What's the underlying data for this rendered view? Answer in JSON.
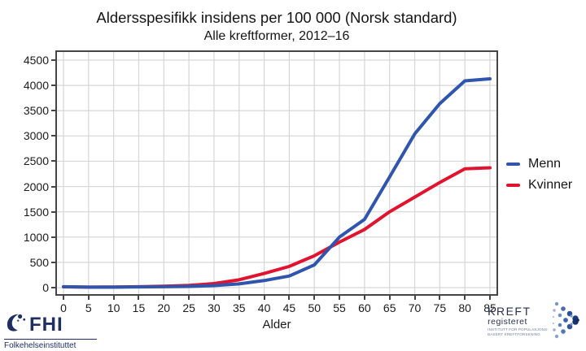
{
  "title": "Aldersspesifikk insidens per 100 000 (Norsk standard)",
  "subtitle": "Alle kreftformer, 2012–16",
  "chart_data": {
    "type": "line",
    "x": [
      0,
      5,
      10,
      15,
      20,
      25,
      30,
      35,
      40,
      45,
      50,
      55,
      60,
      65,
      70,
      75,
      80,
      85
    ],
    "series": [
      {
        "name": "Menn",
        "color": "#2f55ad",
        "values": [
          18,
          10,
          11,
          14,
          18,
          25,
          40,
          75,
          140,
          230,
          450,
          1000,
          1350,
          2190,
          3040,
          3640,
          4090,
          4130
        ]
      },
      {
        "name": "Kvinner",
        "color": "#e0142f",
        "values": [
          16,
          10,
          12,
          18,
          28,
          45,
          80,
          155,
          280,
          420,
          630,
          900,
          1150,
          1500,
          1790,
          2080,
          2350,
          2370
        ]
      }
    ],
    "xlabel": "Alder",
    "ylabel": "",
    "xlim": [
      0,
      85
    ],
    "ylim": [
      0,
      4500
    ],
    "x_ticks": [
      0,
      5,
      10,
      15,
      20,
      25,
      30,
      35,
      40,
      45,
      50,
      55,
      60,
      65,
      70,
      75,
      80,
      85
    ],
    "y_ticks": [
      0,
      500,
      1000,
      1500,
      2000,
      2500,
      3000,
      3500,
      4000,
      4500
    ],
    "grid": true,
    "legend_position": "right-outside"
  },
  "legend": {
    "items": [
      {
        "label": "Menn",
        "color": "#2f55ad"
      },
      {
        "label": "Kvinner",
        "color": "#e0142f"
      }
    ]
  },
  "logos": {
    "fhi": {
      "abbr": "FHI",
      "name": "Folkehelseinstituttet",
      "color": "#1f2f63",
      "icon": "fhi-swoosh-bird-icon"
    },
    "kreftregisteret": {
      "line1": "KREFT",
      "line2": "registeret",
      "tagline1": "INSTITUTT FOR POPULASJONS-",
      "tagline2": "BASERT KREFTFORSKNING",
      "color": "#26304a",
      "icon": "dots-chevron-icon"
    }
  },
  "colors": {
    "background": "#ffffff",
    "grid": "#d6d6d6",
    "axis_box": "#454545",
    "text": "#1a1a1a",
    "menn_line": "#2f55ad",
    "kvinner_line": "#e0142f"
  }
}
